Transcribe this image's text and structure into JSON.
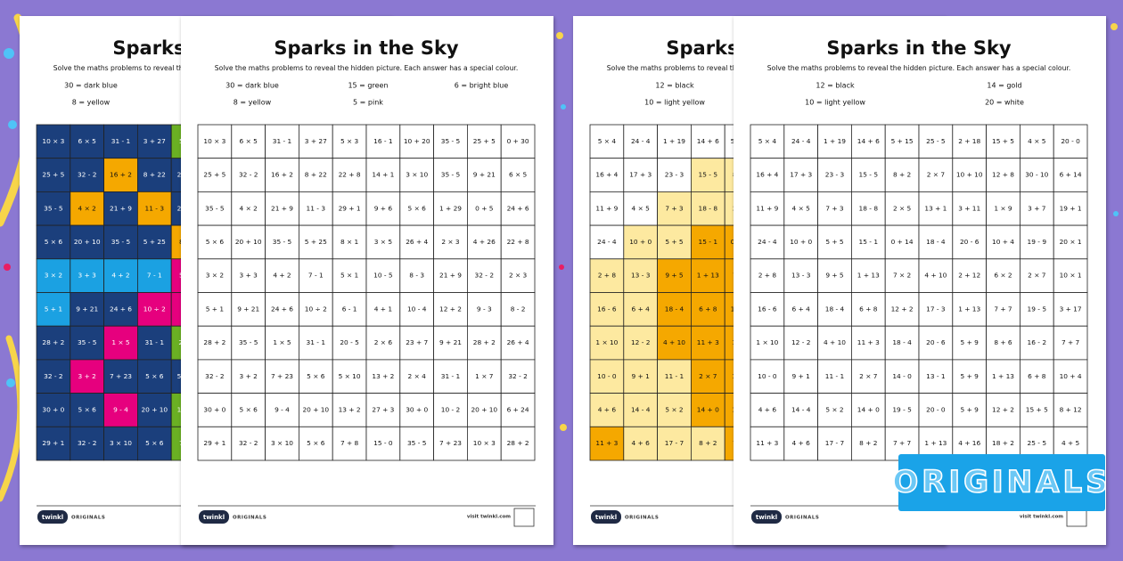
{
  "badge": "ORIGINALS",
  "footer": {
    "brand": "twinkl",
    "series": "ORIGINALS",
    "url": "visit twinkl.com"
  },
  "sheets": [
    {
      "title": "Sparks in the Sky",
      "instructions": "Solve the maths problems to reveal the hidden picture. Each answer has a special colour.",
      "key": [
        "30 = dark blue",
        "8 = yellow",
        "15 = green",
        "5 = pink",
        "6 = bright blue"
      ],
      "rows": [
        [
          "10 × 3",
          "6 × 5",
          "31 - 1",
          "3 + 27",
          "5 × 3",
          "16 - 1",
          "10 + 20",
          "35 - 5",
          "25 + 5",
          "0 + 30"
        ],
        [
          "25 + 5",
          "32 - 2",
          "16 + 2",
          "8 + 22",
          "22 + 8",
          "14 + 1",
          "3 × 10",
          "35 - 5",
          "9 + 21",
          "6 × 5"
        ],
        [
          "35 - 5",
          "4 × 2",
          "21 + 9",
          "11 - 3",
          "29 + 1",
          "9 + 6",
          "5 × 6",
          "1 + 29",
          "0 + 5",
          "24 + 6"
        ],
        [
          "5 × 6",
          "20 + 10",
          "35 - 5",
          "5 + 25",
          "8 × 1",
          "3 × 5",
          "26 + 4",
          "2 × 3",
          "4 + 26",
          "22 + 8"
        ],
        [
          "3 × 2",
          "3 + 3",
          "4 + 2",
          "7 - 1",
          "5 × 1",
          "10 - 5",
          "8 - 3",
          "21 + 9",
          "32 - 2",
          "2 × 3"
        ],
        [
          "5 + 1",
          "9 + 21",
          "24 + 6",
          "10 ÷ 2",
          "6 - 1",
          "4 + 1",
          "10 - 4",
          "12 + 2",
          "9 - 3",
          "8 - 2"
        ],
        [
          "28 + 2",
          "35 - 5",
          "1 × 5",
          "31 - 1",
          "20 - 5",
          "2 × 6",
          "23 + 7",
          "9 + 21",
          "28 + 2",
          "26 + 4"
        ],
        [
          "32 - 2",
          "3 + 2",
          "7 + 23",
          "5 × 6",
          "5 × 10",
          "13 + 2",
          "2 × 4",
          "31 - 1",
          "1 × 7",
          "32 - 2"
        ],
        [
          "30 + 0",
          "5 × 6",
          "9 - 4",
          "20 + 10",
          "13 + 2",
          "27 + 3",
          "30 + 0",
          "10 - 2",
          "20 + 10",
          "6 + 24"
        ],
        [
          "29 + 1",
          "32 - 2",
          "3 × 10",
          "5 × 6",
          "7 + 8",
          "15 - 0",
          "35 - 5",
          "7 + 23",
          "10 × 3",
          "28 + 2"
        ]
      ]
    },
    {
      "title": "Sparks in the Sky",
      "instructions": "Solve the maths problems to reveal the hidden picture. Each answer has a special colour.",
      "key": [
        "12 = black",
        "10 = light yellow",
        "14 = gold",
        "20 = white"
      ],
      "rows": [
        [
          "5 × 4",
          "24 - 4",
          "1 + 19",
          "14 + 6",
          "5 + 15",
          "25 - 5",
          "2 + 18",
          "15 + 5",
          "4 × 5",
          "20 - 0"
        ],
        [
          "16 + 4",
          "17 + 3",
          "23 - 3",
          "15 - 5",
          "8 + 2",
          "2 × 7",
          "10 + 10",
          "12 + 8",
          "30 - 10",
          "6 + 14"
        ],
        [
          "11 + 9",
          "4 × 5",
          "7 + 3",
          "18 - 8",
          "2 × 5",
          "13 + 1",
          "3 + 11",
          "1 × 9",
          "3 + 7",
          "19 + 1"
        ],
        [
          "24 - 4",
          "10 + 0",
          "5 + 5",
          "15 - 1",
          "0 + 14",
          "18 - 4",
          "20 - 6",
          "10 + 4",
          "19 - 9",
          "20 × 1"
        ],
        [
          "2 + 8",
          "13 - 3",
          "9 + 5",
          "1 + 13",
          "7 × 2",
          "4 + 10",
          "2 + 12",
          "6 × 2",
          "2 × 7",
          "10 × 1"
        ],
        [
          "16 - 6",
          "6 + 4",
          "18 - 4",
          "6 + 8",
          "12 + 2",
          "17 - 3",
          "1 + 13",
          "7 + 7",
          "19 - 5",
          "3 + 17"
        ],
        [
          "1 × 10",
          "12 - 2",
          "4 + 10",
          "11 + 3",
          "18 - 4",
          "20 - 6",
          "5 + 9",
          "8 + 6",
          "16 - 2",
          "7 + 7"
        ],
        [
          "10 - 0",
          "9 + 1",
          "11 - 1",
          "2 × 7",
          "14 - 0",
          "13 - 1",
          "5 + 9",
          "1 + 13",
          "6 + 8",
          "10 + 4"
        ],
        [
          "4 + 6",
          "14 - 4",
          "5 × 2",
          "14 + 0",
          "19 - 5",
          "20 - 0",
          "5 + 9",
          "12 + 2",
          "15 + 5",
          "8 + 12"
        ],
        [
          "11 + 3",
          "4 + 6",
          "17 - 7",
          "8 + 2",
          "7 + 7",
          "1 + 13",
          "4 + 16",
          "18 + 2",
          "25 - 5",
          "4 + 5"
        ]
      ]
    }
  ],
  "answer_colors": [
    [
      [
        "#1b3f7c",
        "#1b3f7c",
        "#1b3f7c",
        "#1b3f7c",
        "#6ab023"
      ],
      [
        "#1b3f7c",
        "#1b3f7c",
        "#f5a800",
        "#1b3f7c",
        "#1b3f7c"
      ],
      [
        "#1b3f7c",
        "#f5a800",
        "#1b3f7c",
        "#f5a800",
        "#1b3f7c"
      ],
      [
        "#1b3f7c",
        "#1b3f7c",
        "#1b3f7c",
        "#1b3f7c",
        "#f5a800"
      ],
      [
        "#1ba1e2",
        "#1ba1e2",
        "#1ba1e2",
        "#1ba1e2",
        "#e6007e"
      ],
      [
        "#1ba1e2",
        "#1b3f7c",
        "#1b3f7c",
        "#e6007e",
        "#e6007e"
      ],
      [
        "#1b3f7c",
        "#1b3f7c",
        "#e6007e",
        "#1b3f7c",
        "#6ab023"
      ],
      [
        "#1b3f7c",
        "#e6007e",
        "#1b3f7c",
        "#1b3f7c",
        "#1b3f7c"
      ],
      [
        "#1b3f7c",
        "#1b3f7c",
        "#e6007e",
        "#1b3f7c",
        "#6ab023"
      ],
      [
        "#1b3f7c",
        "#1b3f7c",
        "#1b3f7c",
        "#1b3f7c",
        "#6ab023"
      ]
    ],
    [
      [
        "#ffffff",
        "#ffffff",
        "#ffffff",
        "#ffffff",
        "#ffffff"
      ],
      [
        "#ffffff",
        "#ffffff",
        "#ffffff",
        "#fde9a0",
        "#fde9a0"
      ],
      [
        "#ffffff",
        "#ffffff",
        "#fde9a0",
        "#fde9a0",
        "#fde9a0"
      ],
      [
        "#ffffff",
        "#fde9a0",
        "#fde9a0",
        "#f5a800",
        "#f5a800"
      ],
      [
        "#fde9a0",
        "#fde9a0",
        "#f5a800",
        "#f5a800",
        "#f5a800"
      ],
      [
        "#fde9a0",
        "#fde9a0",
        "#f5a800",
        "#f5a800",
        "#f5a800"
      ],
      [
        "#fde9a0",
        "#fde9a0",
        "#f5a800",
        "#f5a800",
        "#f5a800"
      ],
      [
        "#fde9a0",
        "#fde9a0",
        "#fde9a0",
        "#f5a800",
        "#f5a800"
      ],
      [
        "#fde9a0",
        "#fde9a0",
        "#fde9a0",
        "#f5a800",
        "#f5a800"
      ],
      [
        "#f5a800",
        "#fde9a0",
        "#fde9a0",
        "#fde9a0",
        "#f5a800"
      ]
    ]
  ]
}
